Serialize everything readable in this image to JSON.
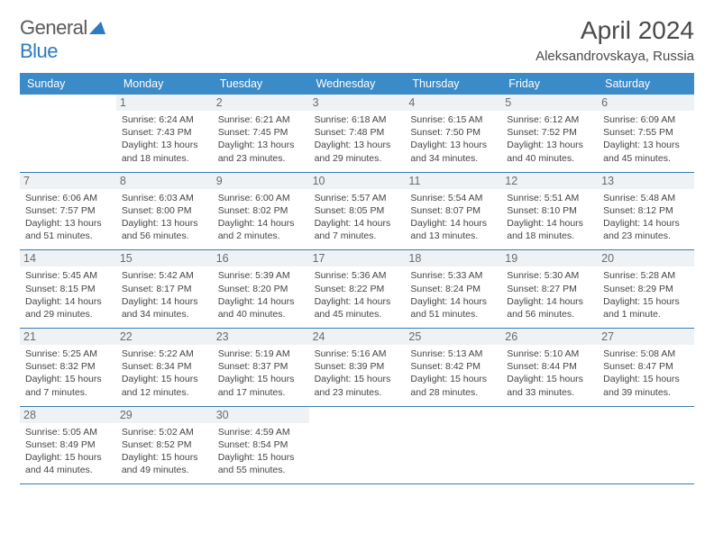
{
  "brand": {
    "part1": "General",
    "part2": "Blue"
  },
  "title": "April 2024",
  "location": "Aleksandrovskaya, Russia",
  "colors": {
    "header_bg": "#3b8bc8",
    "header_text": "#ffffff",
    "daynum_bg": "#eef2f5",
    "week_border": "#3b7bb5",
    "brand_blue": "#2b7bbf",
    "text": "#4a4a4a"
  },
  "day_labels": [
    "Sunday",
    "Monday",
    "Tuesday",
    "Wednesday",
    "Thursday",
    "Friday",
    "Saturday"
  ],
  "weeks": [
    [
      {
        "day": "",
        "sunrise": "",
        "sunset": "",
        "daylight": ""
      },
      {
        "day": "1",
        "sunrise": "Sunrise: 6:24 AM",
        "sunset": "Sunset: 7:43 PM",
        "daylight": "Daylight: 13 hours and 18 minutes."
      },
      {
        "day": "2",
        "sunrise": "Sunrise: 6:21 AM",
        "sunset": "Sunset: 7:45 PM",
        "daylight": "Daylight: 13 hours and 23 minutes."
      },
      {
        "day": "3",
        "sunrise": "Sunrise: 6:18 AM",
        "sunset": "Sunset: 7:48 PM",
        "daylight": "Daylight: 13 hours and 29 minutes."
      },
      {
        "day": "4",
        "sunrise": "Sunrise: 6:15 AM",
        "sunset": "Sunset: 7:50 PM",
        "daylight": "Daylight: 13 hours and 34 minutes."
      },
      {
        "day": "5",
        "sunrise": "Sunrise: 6:12 AM",
        "sunset": "Sunset: 7:52 PM",
        "daylight": "Daylight: 13 hours and 40 minutes."
      },
      {
        "day": "6",
        "sunrise": "Sunrise: 6:09 AM",
        "sunset": "Sunset: 7:55 PM",
        "daylight": "Daylight: 13 hours and 45 minutes."
      }
    ],
    [
      {
        "day": "7",
        "sunrise": "Sunrise: 6:06 AM",
        "sunset": "Sunset: 7:57 PM",
        "daylight": "Daylight: 13 hours and 51 minutes."
      },
      {
        "day": "8",
        "sunrise": "Sunrise: 6:03 AM",
        "sunset": "Sunset: 8:00 PM",
        "daylight": "Daylight: 13 hours and 56 minutes."
      },
      {
        "day": "9",
        "sunrise": "Sunrise: 6:00 AM",
        "sunset": "Sunset: 8:02 PM",
        "daylight": "Daylight: 14 hours and 2 minutes."
      },
      {
        "day": "10",
        "sunrise": "Sunrise: 5:57 AM",
        "sunset": "Sunset: 8:05 PM",
        "daylight": "Daylight: 14 hours and 7 minutes."
      },
      {
        "day": "11",
        "sunrise": "Sunrise: 5:54 AM",
        "sunset": "Sunset: 8:07 PM",
        "daylight": "Daylight: 14 hours and 13 minutes."
      },
      {
        "day": "12",
        "sunrise": "Sunrise: 5:51 AM",
        "sunset": "Sunset: 8:10 PM",
        "daylight": "Daylight: 14 hours and 18 minutes."
      },
      {
        "day": "13",
        "sunrise": "Sunrise: 5:48 AM",
        "sunset": "Sunset: 8:12 PM",
        "daylight": "Daylight: 14 hours and 23 minutes."
      }
    ],
    [
      {
        "day": "14",
        "sunrise": "Sunrise: 5:45 AM",
        "sunset": "Sunset: 8:15 PM",
        "daylight": "Daylight: 14 hours and 29 minutes."
      },
      {
        "day": "15",
        "sunrise": "Sunrise: 5:42 AM",
        "sunset": "Sunset: 8:17 PM",
        "daylight": "Daylight: 14 hours and 34 minutes."
      },
      {
        "day": "16",
        "sunrise": "Sunrise: 5:39 AM",
        "sunset": "Sunset: 8:20 PM",
        "daylight": "Daylight: 14 hours and 40 minutes."
      },
      {
        "day": "17",
        "sunrise": "Sunrise: 5:36 AM",
        "sunset": "Sunset: 8:22 PM",
        "daylight": "Daylight: 14 hours and 45 minutes."
      },
      {
        "day": "18",
        "sunrise": "Sunrise: 5:33 AM",
        "sunset": "Sunset: 8:24 PM",
        "daylight": "Daylight: 14 hours and 51 minutes."
      },
      {
        "day": "19",
        "sunrise": "Sunrise: 5:30 AM",
        "sunset": "Sunset: 8:27 PM",
        "daylight": "Daylight: 14 hours and 56 minutes."
      },
      {
        "day": "20",
        "sunrise": "Sunrise: 5:28 AM",
        "sunset": "Sunset: 8:29 PM",
        "daylight": "Daylight: 15 hours and 1 minute."
      }
    ],
    [
      {
        "day": "21",
        "sunrise": "Sunrise: 5:25 AM",
        "sunset": "Sunset: 8:32 PM",
        "daylight": "Daylight: 15 hours and 7 minutes."
      },
      {
        "day": "22",
        "sunrise": "Sunrise: 5:22 AM",
        "sunset": "Sunset: 8:34 PM",
        "daylight": "Daylight: 15 hours and 12 minutes."
      },
      {
        "day": "23",
        "sunrise": "Sunrise: 5:19 AM",
        "sunset": "Sunset: 8:37 PM",
        "daylight": "Daylight: 15 hours and 17 minutes."
      },
      {
        "day": "24",
        "sunrise": "Sunrise: 5:16 AM",
        "sunset": "Sunset: 8:39 PM",
        "daylight": "Daylight: 15 hours and 23 minutes."
      },
      {
        "day": "25",
        "sunrise": "Sunrise: 5:13 AM",
        "sunset": "Sunset: 8:42 PM",
        "daylight": "Daylight: 15 hours and 28 minutes."
      },
      {
        "day": "26",
        "sunrise": "Sunrise: 5:10 AM",
        "sunset": "Sunset: 8:44 PM",
        "daylight": "Daylight: 15 hours and 33 minutes."
      },
      {
        "day": "27",
        "sunrise": "Sunrise: 5:08 AM",
        "sunset": "Sunset: 8:47 PM",
        "daylight": "Daylight: 15 hours and 39 minutes."
      }
    ],
    [
      {
        "day": "28",
        "sunrise": "Sunrise: 5:05 AM",
        "sunset": "Sunset: 8:49 PM",
        "daylight": "Daylight: 15 hours and 44 minutes."
      },
      {
        "day": "29",
        "sunrise": "Sunrise: 5:02 AM",
        "sunset": "Sunset: 8:52 PM",
        "daylight": "Daylight: 15 hours and 49 minutes."
      },
      {
        "day": "30",
        "sunrise": "Sunrise: 4:59 AM",
        "sunset": "Sunset: 8:54 PM",
        "daylight": "Daylight: 15 hours and 55 minutes."
      },
      {
        "day": "",
        "sunrise": "",
        "sunset": "",
        "daylight": ""
      },
      {
        "day": "",
        "sunrise": "",
        "sunset": "",
        "daylight": ""
      },
      {
        "day": "",
        "sunrise": "",
        "sunset": "",
        "daylight": ""
      },
      {
        "day": "",
        "sunrise": "",
        "sunset": "",
        "daylight": ""
      }
    ]
  ]
}
